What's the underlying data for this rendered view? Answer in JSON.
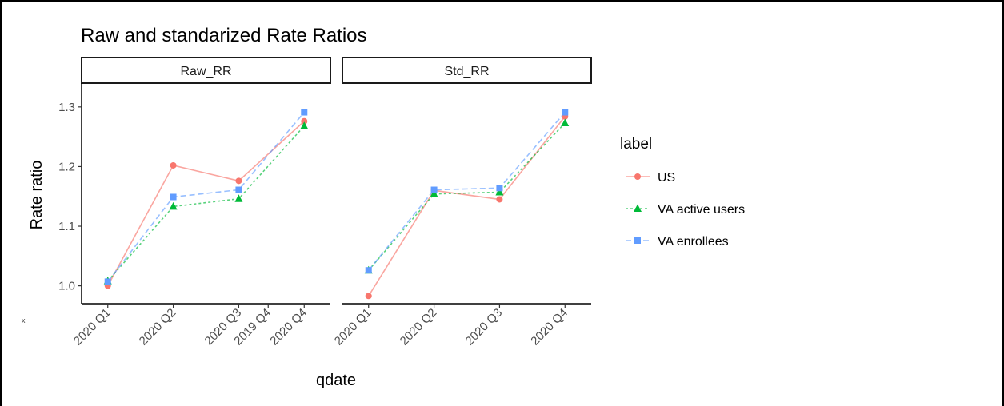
{
  "chart_data": {
    "type": "line",
    "title": "Raw and standarized Rate Ratios",
    "xlabel": "qdate",
    "ylabel": "Rate ratio",
    "stray_mark": "x",
    "ylim": [
      0.97,
      1.34
    ],
    "yticks": [
      1.0,
      1.1,
      1.2,
      1.3
    ],
    "grid": false,
    "legend": {
      "title": "label",
      "position": "right",
      "entries": [
        "US",
        "VA active users",
        "VA enrollees"
      ]
    },
    "panels": [
      {
        "strip": "Raw_RR",
        "categories": [
          "2020 Q1",
          "2020 Q2",
          "2020 Q3",
          "2019 Q4",
          "2020 Q4"
        ],
        "cat_x": [
          1,
          2,
          3,
          3.45,
          4
        ],
        "series": [
          {
            "name": "US",
            "x": [
              "2020 Q1",
              "2020 Q2",
              "2020 Q3",
              "2020 Q4"
            ],
            "values": [
              1.0,
              1.202,
              1.176,
              1.276
            ]
          },
          {
            "name": "VA active users",
            "x": [
              "2020 Q1",
              "2020 Q2",
              "2020 Q3",
              "2020 Q4"
            ],
            "values": [
              1.008,
              1.133,
              1.146,
              1.268
            ]
          },
          {
            "name": "VA enrollees",
            "x": [
              "2020 Q1",
              "2020 Q2",
              "2020 Q3",
              "2020 Q4"
            ],
            "values": [
              1.007,
              1.149,
              1.161,
              1.291
            ]
          }
        ]
      },
      {
        "strip": "Std_RR",
        "categories": [
          "2020 Q1",
          "2020 Q2",
          "2020 Q3",
          "2020 Q4"
        ],
        "cat_x": [
          1,
          2,
          3,
          4
        ],
        "series": [
          {
            "name": "US",
            "x": [
              "2020 Q1",
              "2020 Q2",
              "2020 Q3",
              "2020 Q4"
            ],
            "values": [
              0.983,
              1.16,
              1.145,
              1.284
            ]
          },
          {
            "name": "VA active users",
            "x": [
              "2020 Q1",
              "2020 Q2",
              "2020 Q3",
              "2020 Q4"
            ],
            "values": [
              1.026,
              1.154,
              1.157,
              1.273
            ]
          },
          {
            "name": "VA enrollees",
            "x": [
              "2020 Q1",
              "2020 Q2",
              "2020 Q3",
              "2020 Q4"
            ],
            "values": [
              1.026,
              1.161,
              1.164,
              1.291
            ]
          }
        ]
      }
    ],
    "series_styles": [
      {
        "name": "US",
        "color": "#F8766D",
        "marker": "circle",
        "dash": "solid"
      },
      {
        "name": "VA active users",
        "color": "#00BA38",
        "marker": "triangle",
        "dash": "dotted"
      },
      {
        "name": "VA enrollees",
        "color": "#619CFF",
        "marker": "square",
        "dash": "dashed"
      }
    ]
  }
}
